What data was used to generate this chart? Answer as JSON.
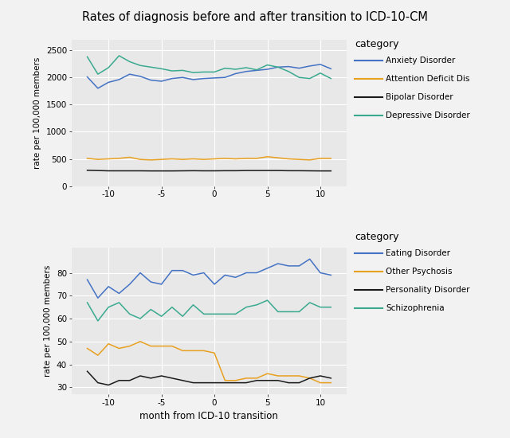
{
  "title": "Rates of diagnosis before and after transition to ICD-10-CM",
  "xlabel": "month from ICD-10 transition",
  "ylabel": "rate per 100,000 members",
  "panel_bg": "#e8e8e8",
  "fig_bg": "#f2f2f2",
  "months": [
    -12,
    -11,
    -10,
    -9,
    -8,
    -7,
    -6,
    -5,
    -4,
    -3,
    -2,
    -1,
    0,
    1,
    2,
    3,
    4,
    5,
    6,
    7,
    8,
    9,
    10,
    11
  ],
  "top": {
    "anxiety": [
      2010,
      1800,
      1910,
      1960,
      2060,
      2020,
      1950,
      1930,
      1980,
      2000,
      1960,
      1980,
      1990,
      2000,
      2070,
      2110,
      2130,
      2150,
      2190,
      2200,
      2170,
      2210,
      2240,
      2160
    ],
    "attention": [
      510,
      490,
      500,
      510,
      530,
      490,
      480,
      490,
      500,
      490,
      500,
      490,
      500,
      510,
      500,
      510,
      510,
      540,
      520,
      500,
      490,
      480,
      510,
      510
    ],
    "bipolar": [
      290,
      285,
      280,
      280,
      280,
      280,
      278,
      278,
      278,
      280,
      282,
      280,
      280,
      282,
      282,
      285,
      285,
      285,
      285,
      282,
      282,
      280,
      278,
      278
    ],
    "depressive": [
      2380,
      2060,
      2180,
      2400,
      2290,
      2220,
      2190,
      2160,
      2120,
      2130,
      2090,
      2100,
      2100,
      2170,
      2150,
      2180,
      2140,
      2230,
      2190,
      2110,
      2000,
      1980,
      2080,
      1980
    ],
    "ylim": [
      0,
      2700
    ],
    "yticks": [
      0,
      500,
      1000,
      1500,
      2000,
      2500
    ],
    "colors": {
      "anxiety": "#4472C4",
      "attention": "#E8A020",
      "bipolar": "#1a1a1a",
      "depressive": "#3aaa8f"
    },
    "legend_labels": [
      "Anxiety Disorder",
      "Attention Deficit Dis",
      "Bipolar Disorder",
      "Depressive Disorder"
    ]
  },
  "bottom": {
    "eating": [
      77,
      69,
      74,
      71,
      75,
      80,
      76,
      75,
      81,
      81,
      79,
      80,
      75,
      79,
      78,
      80,
      80,
      82,
      84,
      83,
      83,
      86,
      80,
      79
    ],
    "other_psychosis": [
      47,
      44,
      49,
      47,
      48,
      50,
      48,
      48,
      48,
      46,
      46,
      46,
      45,
      33,
      33,
      34,
      34,
      36,
      35,
      35,
      35,
      34,
      32,
      32
    ],
    "personality": [
      37,
      32,
      31,
      33,
      33,
      35,
      34,
      35,
      34,
      33,
      32,
      32,
      32,
      32,
      32,
      32,
      33,
      33,
      33,
      32,
      32,
      34,
      35,
      34
    ],
    "schizophrenia": [
      67,
      59,
      65,
      67,
      62,
      60,
      64,
      61,
      65,
      61,
      66,
      62,
      62,
      62,
      62,
      65,
      66,
      68,
      63,
      63,
      63,
      67,
      65,
      65
    ],
    "ylim": [
      27,
      91
    ],
    "yticks": [
      30,
      40,
      50,
      60,
      70,
      80
    ],
    "colors": {
      "eating": "#4472C4",
      "other_psychosis": "#E8A020",
      "personality": "#1a1a1a",
      "schizophrenia": "#3aaa8f"
    },
    "legend_labels": [
      "Eating Disorder",
      "Other Psychosis",
      "Personality Disorder",
      "Schizophrenia"
    ]
  }
}
